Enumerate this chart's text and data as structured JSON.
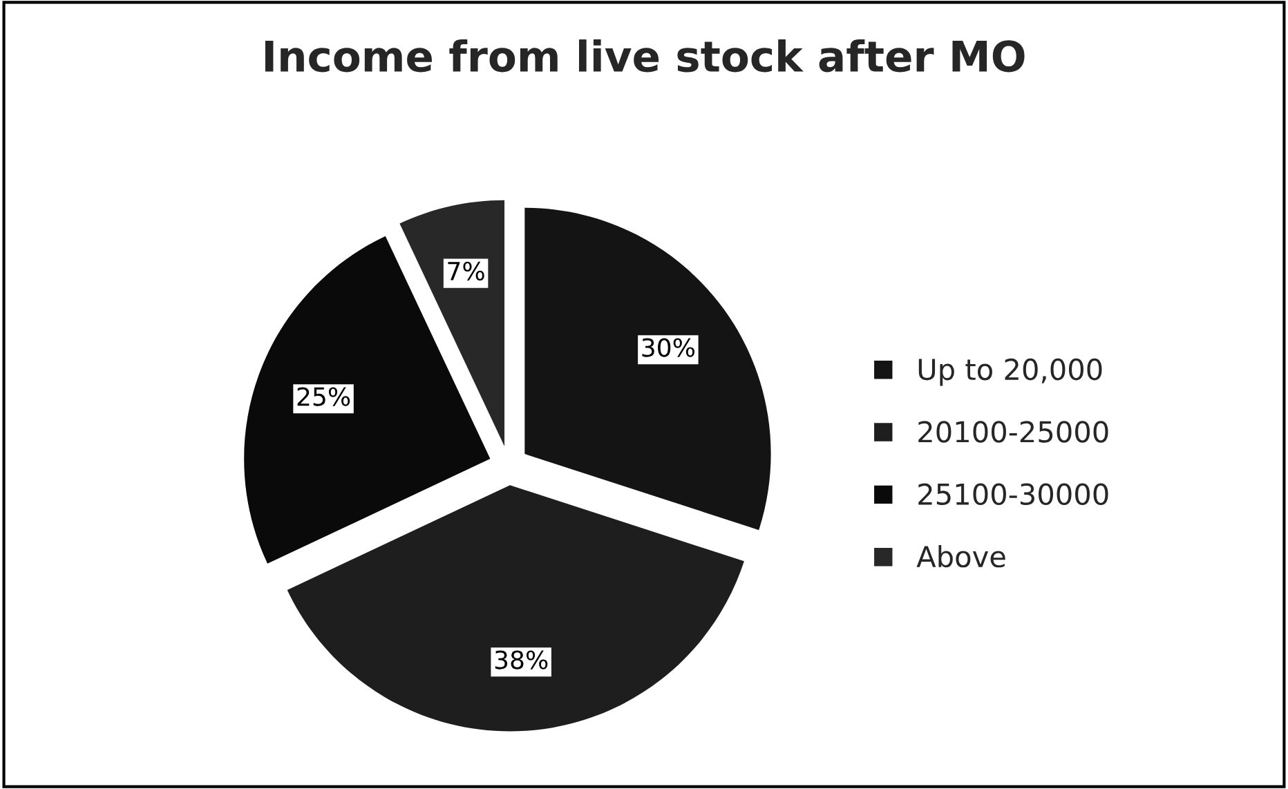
{
  "chart_data": {
    "type": "pie",
    "title": "Income from live stock after MO",
    "categories": [
      "Up to 20,000",
      "20100-25000",
      "25100-30000",
      "Above"
    ],
    "values": [
      30,
      38,
      25,
      7
    ],
    "colors": [
      "#141414",
      "#1e1e1e",
      "#0a0a0a",
      "#282828"
    ],
    "value_labels": [
      "30%",
      "38%",
      "25%",
      "7%"
    ],
    "legend": "right"
  }
}
